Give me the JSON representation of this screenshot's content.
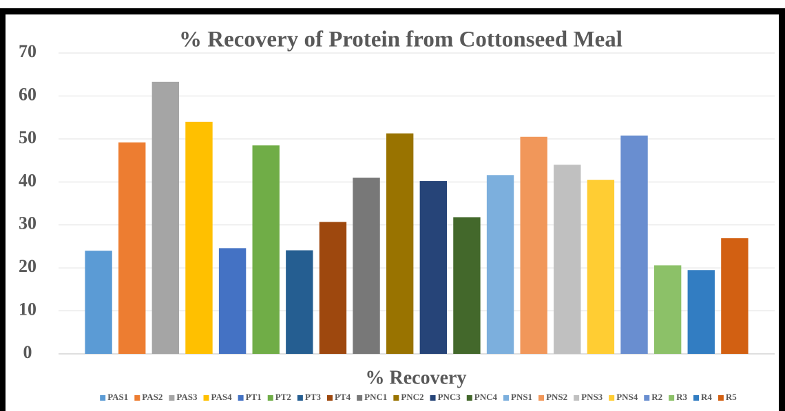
{
  "chart_data": {
    "type": "bar",
    "title": "% Recovery of Protein  from Cottonseed Meal",
    "x_label": "% Recovery",
    "categories": [
      null
    ],
    "series": [
      {
        "name": "PAS1",
        "color": "#5b9bd5",
        "values": [
          24
        ]
      },
      {
        "name": "PAS2",
        "color": "#ed7d31",
        "values": [
          49.2
        ]
      },
      {
        "name": "PAS3",
        "color": "#a5a5a5",
        "values": [
          63.3
        ]
      },
      {
        "name": "PAS4",
        "color": "#ffc000",
        "values": [
          54
        ]
      },
      {
        "name": "PT1",
        "color": "#4472c4",
        "values": [
          24.6
        ]
      },
      {
        "name": "PT2",
        "color": "#70ad47",
        "values": [
          48.5
        ]
      },
      {
        "name": "PT3",
        "color": "#255e91",
        "values": [
          24.1
        ]
      },
      {
        "name": "PT4",
        "color": "#9e480e",
        "values": [
          30.7
        ]
      },
      {
        "name": "PNC1",
        "color": "#787878",
        "values": [
          41
        ]
      },
      {
        "name": "PNC2",
        "color": "#997300",
        "values": [
          51.3
        ]
      },
      {
        "name": "PNC3",
        "color": "#264478",
        "values": [
          40.2
        ]
      },
      {
        "name": "PNC4",
        "color": "#43682b",
        "values": [
          31.8
        ]
      },
      {
        "name": "PNS1",
        "color": "#7cafdd",
        "values": [
          41.6
        ]
      },
      {
        "name": "PNS2",
        "color": "#f1975a",
        "values": [
          50.5
        ]
      },
      {
        "name": "PNS3",
        "color": "#c0c0c0",
        "values": [
          44
        ]
      },
      {
        "name": "PNS4",
        "color": "#ffcd33",
        "values": [
          40.5
        ]
      },
      {
        "name": "R2",
        "color": "#698ed0",
        "values": [
          50.8
        ]
      },
      {
        "name": "R3",
        "color": "#8cc168",
        "values": [
          20.6
        ]
      },
      {
        "name": "R4",
        "color": "#327dc2",
        "values": [
          19.5
        ]
      },
      {
        "name": "R5",
        "color": "#d26012",
        "values": [
          26.9
        ]
      }
    ],
    "ylim": [
      0,
      70
    ],
    "yticks": [
      0,
      10,
      20,
      30,
      40,
      50,
      60,
      70
    ],
    "grid": true,
    "legend": "bottom"
  }
}
